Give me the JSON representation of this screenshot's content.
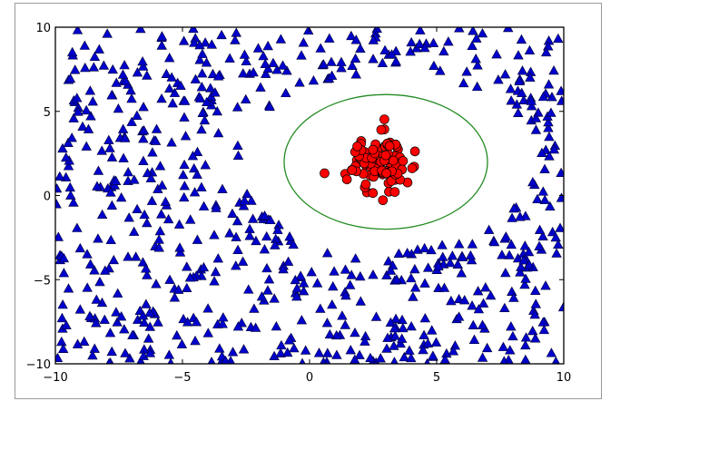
{
  "chart_data": {
    "type": "scatter",
    "title": "",
    "xlabel": "",
    "ylabel": "",
    "xlim": [
      -10,
      10
    ],
    "ylim": [
      -10,
      10
    ],
    "x_ticks": [
      -10,
      -5,
      0,
      5,
      10
    ],
    "y_ticks": [
      -10,
      -5,
      0,
      5,
      10
    ],
    "x_tick_labels": [
      "−10",
      "−5",
      "0",
      "5",
      "10"
    ],
    "y_tick_labels": [
      "−10",
      "−5",
      "0",
      "5",
      "10"
    ],
    "grid": false,
    "series": [
      {
        "marker": "triangle",
        "color": "#0000cc",
        "edge_color": "#000033",
        "distribution": "uniform over the plot area, excluding points inside an ellipse of center (3, 2), semi-axes 5.8 (x) and 5.3 (y)",
        "count": 680
      },
      {
        "marker": "circle",
        "color": "#ff0000",
        "edge_color": "#000000",
        "distribution": "cluster centered near (2.8, 2.0), x spread about 0.55, y spread about 0.8",
        "count": 110
      }
    ],
    "ellipse": {
      "center": [
        3,
        2
      ],
      "width": 8,
      "height": 8,
      "color": "#228b22"
    }
  }
}
